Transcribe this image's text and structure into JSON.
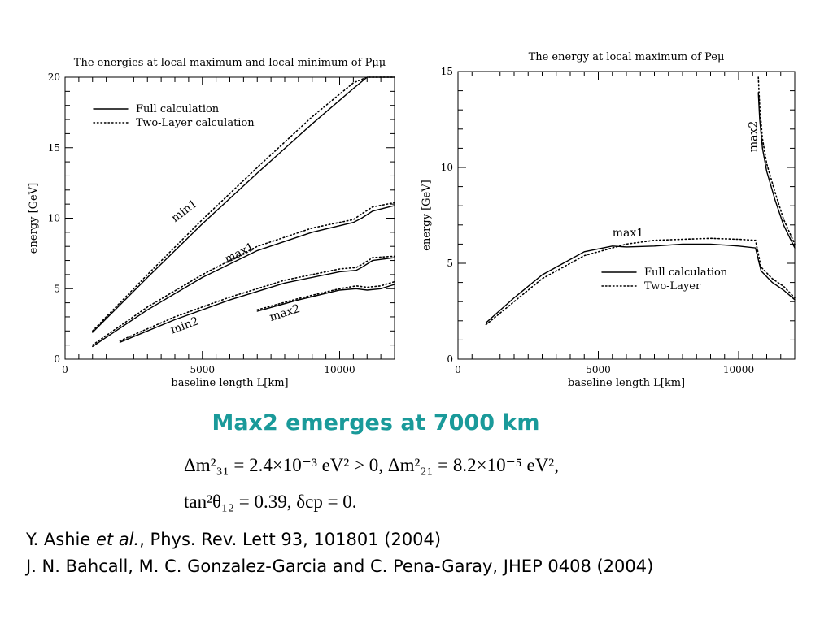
{
  "headline": "Max2 emerges at 7000 km",
  "equations": {
    "line1": "Δm²₃₁ = 2.4×10⁻³ eV² > 0, Δm²₂₁ = 8.2×10⁻⁵ eV²,",
    "line2": "tan²θ₁₂ = 0.39, δcp = 0."
  },
  "references": {
    "ref1_authors": "Y. Ashie",
    "ref1_etal": "et al.",
    "ref1_rest": ", Phys. Rev. Lett 93, 101801 (2004)",
    "ref2": "J. N. Bahcall, M. C. Gonzalez-Garcia and C. Pena-Garay, JHEP 0408 (2004)"
  },
  "chart_data": [
    {
      "type": "line",
      "title": "The energies at local maximum and local minimum of Pμμ",
      "xlabel": "baseline length L[km]",
      "ylabel": "energy [GeV]",
      "xlim": [
        0,
        12000
      ],
      "ylim": [
        0,
        20
      ],
      "xticks": [
        0,
        5000,
        10000
      ],
      "yticks": [
        0,
        5,
        10,
        15,
        20
      ],
      "legend": [
        "Full calculation",
        "Two-Layer calculation"
      ],
      "legend_position": "top-left",
      "series": [
        {
          "label": "min1",
          "style": "solid",
          "x": [
            1000,
            3000,
            5000,
            7000,
            9000,
            10500,
            11000,
            11600,
            12000
          ],
          "y": [
            1.9,
            5.8,
            9.6,
            13.2,
            16.7,
            19.2,
            20.0,
            20.0,
            20.0
          ]
        },
        {
          "label": "min1",
          "style": "dotted",
          "x": [
            1000,
            3000,
            5000,
            7000,
            9000,
            10500,
            11000,
            12000
          ],
          "y": [
            2.0,
            6.0,
            9.9,
            13.6,
            17.2,
            19.6,
            20.0,
            20.0
          ]
        },
        {
          "label": "max1",
          "style": "solid",
          "x": [
            1000,
            3000,
            5000,
            7000,
            9000,
            10500,
            10800,
            11200,
            12000
          ],
          "y": [
            0.9,
            3.5,
            5.8,
            7.7,
            9.0,
            9.7,
            10.0,
            10.5,
            10.9
          ]
        },
        {
          "label": "max1",
          "style": "dotted",
          "x": [
            1000,
            3000,
            5000,
            7000,
            9000,
            10500,
            10800,
            11200,
            12000
          ],
          "y": [
            1.0,
            3.7,
            6.0,
            8.0,
            9.3,
            9.9,
            10.3,
            10.8,
            11.1
          ]
        },
        {
          "label": "min2",
          "style": "solid",
          "x": [
            2000,
            4000,
            6000,
            8000,
            10000,
            10600,
            10800,
            11200,
            12000
          ],
          "y": [
            1.2,
            2.8,
            4.2,
            5.4,
            6.2,
            6.3,
            6.5,
            7.0,
            7.2
          ]
        },
        {
          "label": "min2",
          "style": "dotted",
          "x": [
            2000,
            4000,
            6000,
            8000,
            10000,
            10600,
            10800,
            11200,
            12000
          ],
          "y": [
            1.3,
            3.0,
            4.4,
            5.6,
            6.4,
            6.5,
            6.7,
            7.2,
            7.3
          ]
        },
        {
          "label": "max2",
          "style": "solid",
          "x": [
            7000,
            8500,
            10000,
            10600,
            11000,
            11500,
            12000
          ],
          "y": [
            3.4,
            4.2,
            4.9,
            5.0,
            4.9,
            5.0,
            5.3
          ]
        },
        {
          "label": "max2",
          "style": "dotted",
          "x": [
            7000,
            8500,
            10000,
            10600,
            11000,
            11500,
            12000
          ],
          "y": [
            3.5,
            4.3,
            5.0,
            5.2,
            5.1,
            5.2,
            5.5
          ]
        }
      ],
      "annotations": [
        "min1",
        "max1",
        "min2",
        "max2"
      ]
    },
    {
      "type": "line",
      "title": "The energy at local maximum of Peμ",
      "xlabel": "baseline length L[km]",
      "ylabel": "energy [GeV]",
      "xlim": [
        0,
        12000
      ],
      "ylim": [
        0,
        15
      ],
      "xticks": [
        0,
        5000,
        10000
      ],
      "yticks": [
        0,
        5,
        10,
        15
      ],
      "legend": [
        "Full calculation",
        "Two-Layer"
      ],
      "legend_position": "lower-right",
      "series": [
        {
          "label": "max1",
          "style": "solid",
          "x": [
            1000,
            2000,
            3000,
            4500,
            5500,
            6000,
            7000,
            8000,
            9000,
            10000,
            10600,
            10800,
            11200,
            11600,
            12000
          ],
          "y": [
            1.9,
            3.2,
            4.4,
            5.6,
            5.9,
            5.85,
            5.9,
            6.0,
            6.0,
            5.9,
            5.8,
            4.6,
            4.0,
            3.6,
            3.1
          ]
        },
        {
          "label": "max1",
          "style": "dotted",
          "x": [
            1000,
            2000,
            3000,
            4500,
            5500,
            6000,
            7000,
            8000,
            9000,
            10000,
            10600,
            10800,
            11200,
            11600,
            12000
          ],
          "y": [
            1.8,
            3.0,
            4.2,
            5.4,
            5.8,
            6.0,
            6.2,
            6.25,
            6.3,
            6.25,
            6.2,
            4.8,
            4.2,
            3.8,
            3.2
          ]
        },
        {
          "label": "max2",
          "style": "solid",
          "x": [
            10700,
            10750,
            10850,
            11000,
            11300,
            11600,
            12000
          ],
          "y": [
            13.9,
            12.5,
            11.0,
            9.8,
            8.3,
            7.0,
            5.8
          ]
        },
        {
          "label": "max2",
          "style": "dotted",
          "x": [
            10700,
            10750,
            10850,
            11000,
            11300,
            11600,
            12000
          ],
          "y": [
            14.7,
            13.2,
            11.5,
            10.2,
            8.7,
            7.3,
            6.0
          ]
        }
      ],
      "annotations": [
        "max1",
        "max2"
      ]
    }
  ]
}
